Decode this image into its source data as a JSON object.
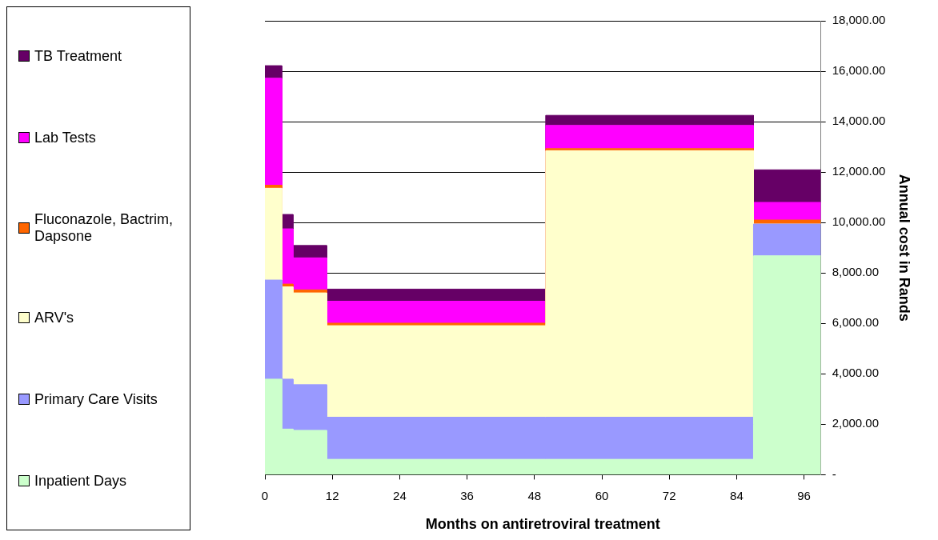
{
  "chart_data": {
    "type": "area",
    "stacked": true,
    "xlabel": "Months on antiretroviral treatment",
    "ylabel": "Annual cost in Rands",
    "x": [
      0,
      3,
      3,
      5,
      5,
      11,
      11,
      50,
      50,
      87,
      87,
      99
    ],
    "xlim": [
      0,
      99
    ],
    "xticks": [
      0,
      12,
      24,
      36,
      48,
      60,
      72,
      84,
      96
    ],
    "ylim": [
      0,
      18000
    ],
    "yticks": [
      {
        "value": 0,
        "label": "-"
      },
      {
        "value": 2000,
        "label": "2,000.00"
      },
      {
        "value": 4000,
        "label": "4,000.00"
      },
      {
        "value": 6000,
        "label": "6,000.00"
      },
      {
        "value": 8000,
        "label": "8,000.00"
      },
      {
        "value": 10000,
        "label": "10,000.00"
      },
      {
        "value": 12000,
        "label": "12,000.00"
      },
      {
        "value": 14000,
        "label": "14,000.00"
      },
      {
        "value": 16000,
        "label": "16,000.00"
      },
      {
        "value": 18000,
        "label": "18,000.00"
      }
    ],
    "grid": "y",
    "legend": "left",
    "series": [
      {
        "name": "Inpatient Days",
        "color": "#ccffcc",
        "values": [
          3790,
          3790,
          1810,
          1810,
          1760,
          1760,
          610,
          610,
          610,
          610,
          8680,
          8680
        ]
      },
      {
        "name": "Primary Care Visits",
        "color": "#9999ff",
        "values": [
          3930,
          3930,
          1980,
          1980,
          1810,
          1810,
          1670,
          1670,
          1670,
          1670,
          1260,
          1260
        ]
      },
      {
        "name": "ARV's",
        "color": "#ffffcc",
        "values": [
          3640,
          3640,
          3660,
          3660,
          3640,
          3640,
          3630,
          3630,
          10570,
          10570,
          0,
          0
        ]
      },
      {
        "name": "Fluconazole, Bactrim, Dapsone",
        "color": "#ff6600",
        "values": [
          120,
          120,
          110,
          110,
          120,
          120,
          100,
          100,
          80,
          80,
          160,
          160
        ]
      },
      {
        "name": "Lab Tests",
        "color": "#ff00ff",
        "values": [
          4240,
          4240,
          2190,
          2190,
          1270,
          1270,
          870,
          870,
          920,
          920,
          700,
          700
        ]
      },
      {
        "name": "TB Treatment",
        "color": "#660066",
        "values": [
          500,
          500,
          570,
          570,
          490,
          490,
          480,
          480,
          400,
          400,
          1290,
          1290
        ]
      }
    ]
  }
}
